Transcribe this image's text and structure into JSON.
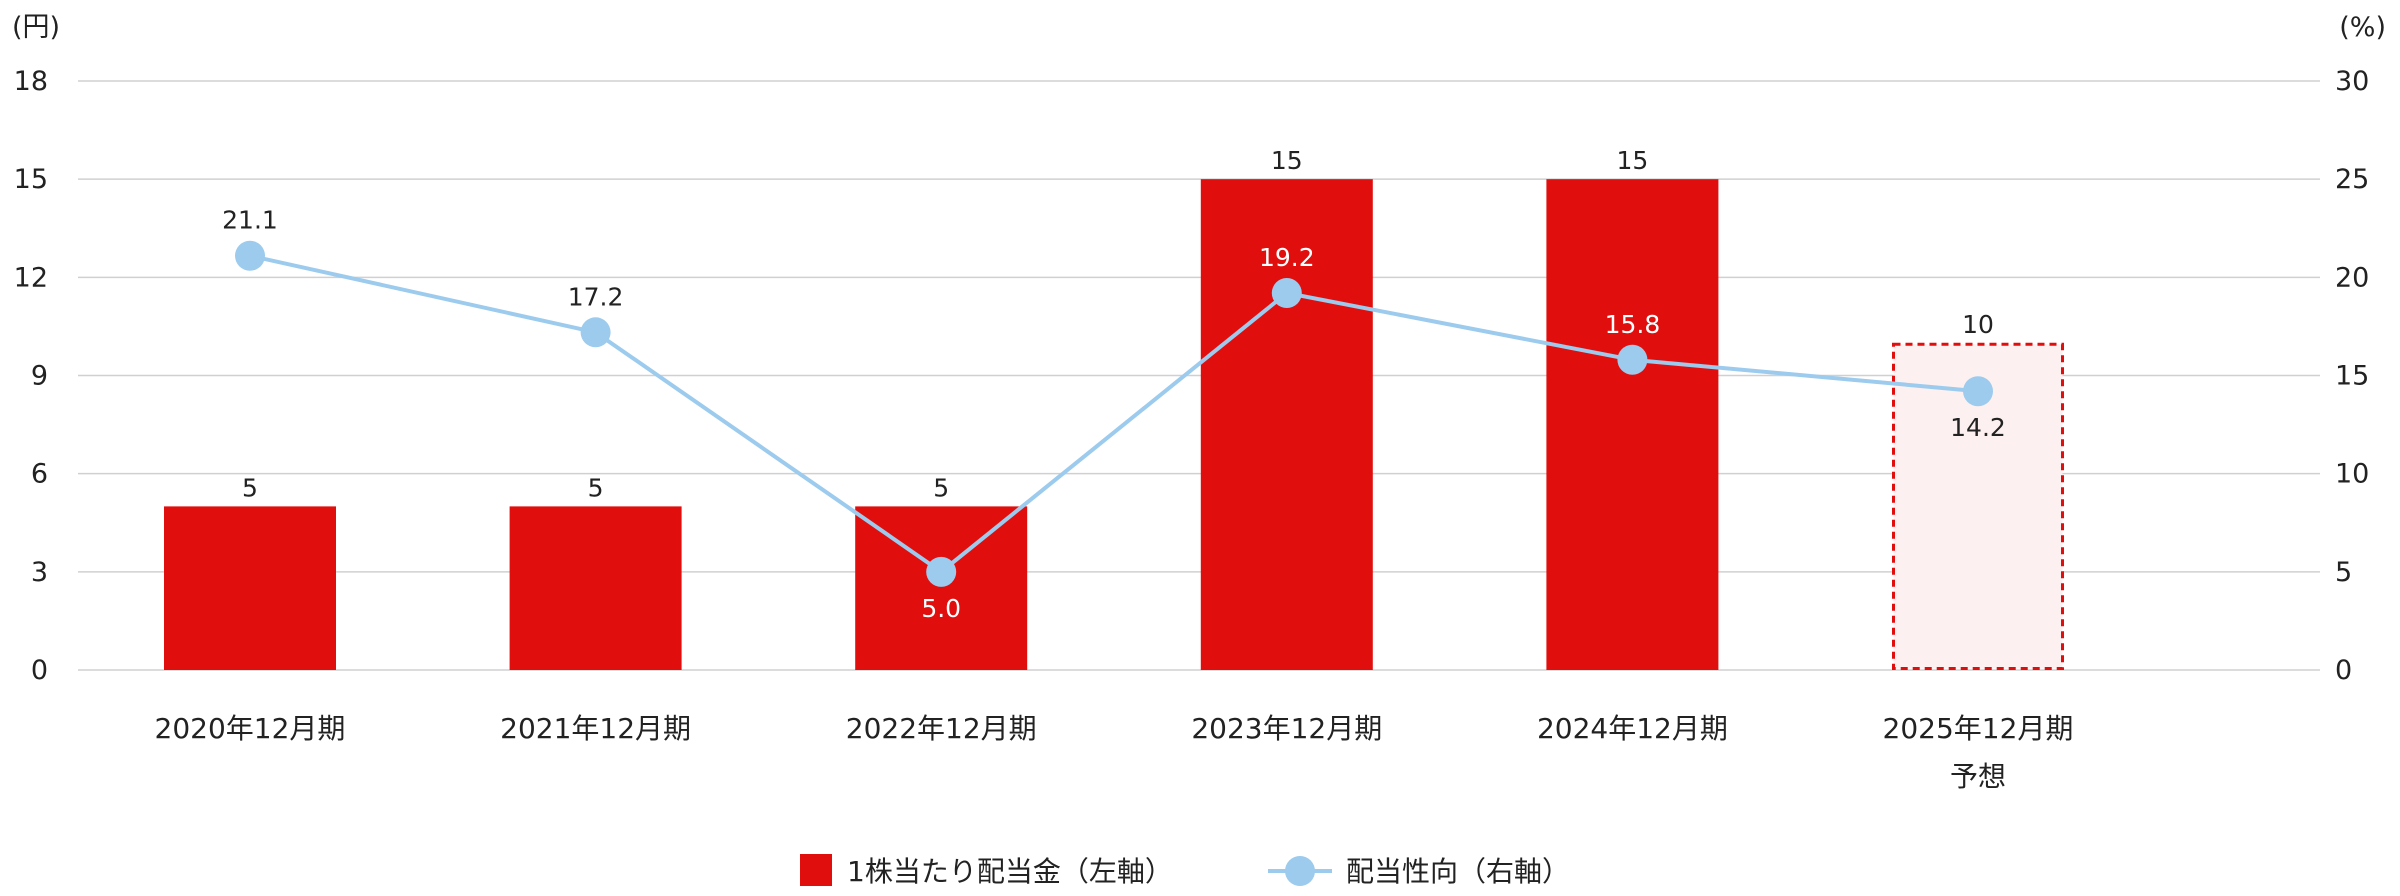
{
  "chart_data": {
    "type": "bar",
    "left_axis_unit": "(円)",
    "right_axis_unit": "(%)",
    "categories": [
      "2020年12月期",
      "2021年12月期",
      "2022年12月期",
      "2023年12月期",
      "2024年12月期",
      [
        "2025年12月期",
        "予想"
      ]
    ],
    "left_ylim": [
      0,
      18
    ],
    "right_ylim": [
      0,
      30
    ],
    "left_ticks": [
      "0",
      "3",
      "6",
      "9",
      "12",
      "15",
      "18"
    ],
    "right_ticks": [
      "0",
      "5",
      "10",
      "15",
      "20",
      "25",
      "30"
    ],
    "grid": true,
    "series": [
      {
        "name": "1株当たり配当金（左軸）",
        "type": "bar",
        "axis": "left",
        "values": [
          5,
          5,
          5,
          15,
          15,
          10
        ],
        "labels": [
          "5",
          "5",
          "5",
          "15",
          "15",
          "10"
        ],
        "forecast": [
          false,
          false,
          false,
          false,
          false,
          true
        ],
        "color": "#e10e0e"
      },
      {
        "name": "配当性向（右軸）",
        "type": "line",
        "axis": "right",
        "values": [
          21.1,
          17.2,
          5.0,
          19.2,
          15.8,
          14.2
        ],
        "labels": [
          "21.1",
          "17.2",
          "5.0",
          "19.2",
          "15.8",
          "14.2"
        ],
        "color": "#9ccbee"
      }
    ],
    "legend_position": "bottom-center"
  }
}
